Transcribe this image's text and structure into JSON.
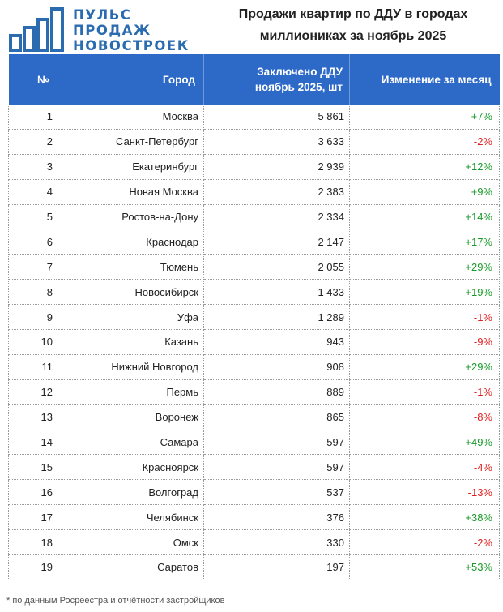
{
  "logo": {
    "line1": "ПУЛЬС",
    "line2": "ПРОДАЖ",
    "line3": "НОВОСТРОЕК"
  },
  "title": {
    "line1": "Продажи квартир по ДДУ в городах",
    "line2": "миллиониках за ноябрь 2025"
  },
  "table": {
    "headers": {
      "num": "№",
      "city": "Город",
      "deals_line1": "Заключено ДДУ",
      "deals_line2": "ноябрь 2025, шт",
      "change": "Изменение за месяц"
    },
    "rows": [
      {
        "num": "1",
        "city": "Москва",
        "deals": "5 861",
        "change": "+7%",
        "trend": "pos"
      },
      {
        "num": "2",
        "city": "Санкт-Петербург",
        "deals": "3 633",
        "change": "-2%",
        "trend": "neg"
      },
      {
        "num": "3",
        "city": "Екатеринбург",
        "deals": "2 939",
        "change": "+12%",
        "trend": "pos"
      },
      {
        "num": "4",
        "city": "Новая Москва",
        "deals": "2 383",
        "change": "+9%",
        "trend": "pos"
      },
      {
        "num": "5",
        "city": "Ростов-на-Дону",
        "deals": "2 334",
        "change": "+14%",
        "trend": "pos"
      },
      {
        "num": "6",
        "city": "Краснодар",
        "deals": "2 147",
        "change": "+17%",
        "trend": "pos"
      },
      {
        "num": "7",
        "city": "Тюмень",
        "deals": "2 055",
        "change": "+29%",
        "trend": "pos"
      },
      {
        "num": "8",
        "city": "Новосибирск",
        "deals": "1 433",
        "change": "+19%",
        "trend": "pos"
      },
      {
        "num": "9",
        "city": "Уфа",
        "deals": "1 289",
        "change": "-1%",
        "trend": "neg"
      },
      {
        "num": "10",
        "city": "Казань",
        "deals": "943",
        "change": "-9%",
        "trend": "neg"
      },
      {
        "num": "11",
        "city": "Нижний Новгород",
        "deals": "908",
        "change": "+29%",
        "trend": "pos"
      },
      {
        "num": "12",
        "city": "Пермь",
        "deals": "889",
        "change": "-1%",
        "trend": "neg"
      },
      {
        "num": "13",
        "city": "Воронеж",
        "deals": "865",
        "change": "-8%",
        "trend": "neg"
      },
      {
        "num": "14",
        "city": "Самара",
        "deals": "597",
        "change": "+49%",
        "trend": "pos"
      },
      {
        "num": "15",
        "city": "Красноярск",
        "deals": "597",
        "change": "-4%",
        "trend": "neg"
      },
      {
        "num": "16",
        "city": "Волгоград",
        "deals": "537",
        "change": "-13%",
        "trend": "neg"
      },
      {
        "num": "17",
        "city": "Челябинск",
        "deals": "376",
        "change": "+38%",
        "trend": "pos"
      },
      {
        "num": "18",
        "city": "Омск",
        "deals": "330",
        "change": "-2%",
        "trend": "neg"
      },
      {
        "num": "19",
        "city": "Саратов",
        "deals": "197",
        "change": "+53%",
        "trend": "pos"
      }
    ]
  },
  "footnote": "* по данным Росреестра и отчётности застройщиков",
  "colors": {
    "header_bg": "#2d69c7",
    "logo": "#2b6cb0",
    "positive": "#1a9a2a",
    "negative": "#e02020"
  }
}
